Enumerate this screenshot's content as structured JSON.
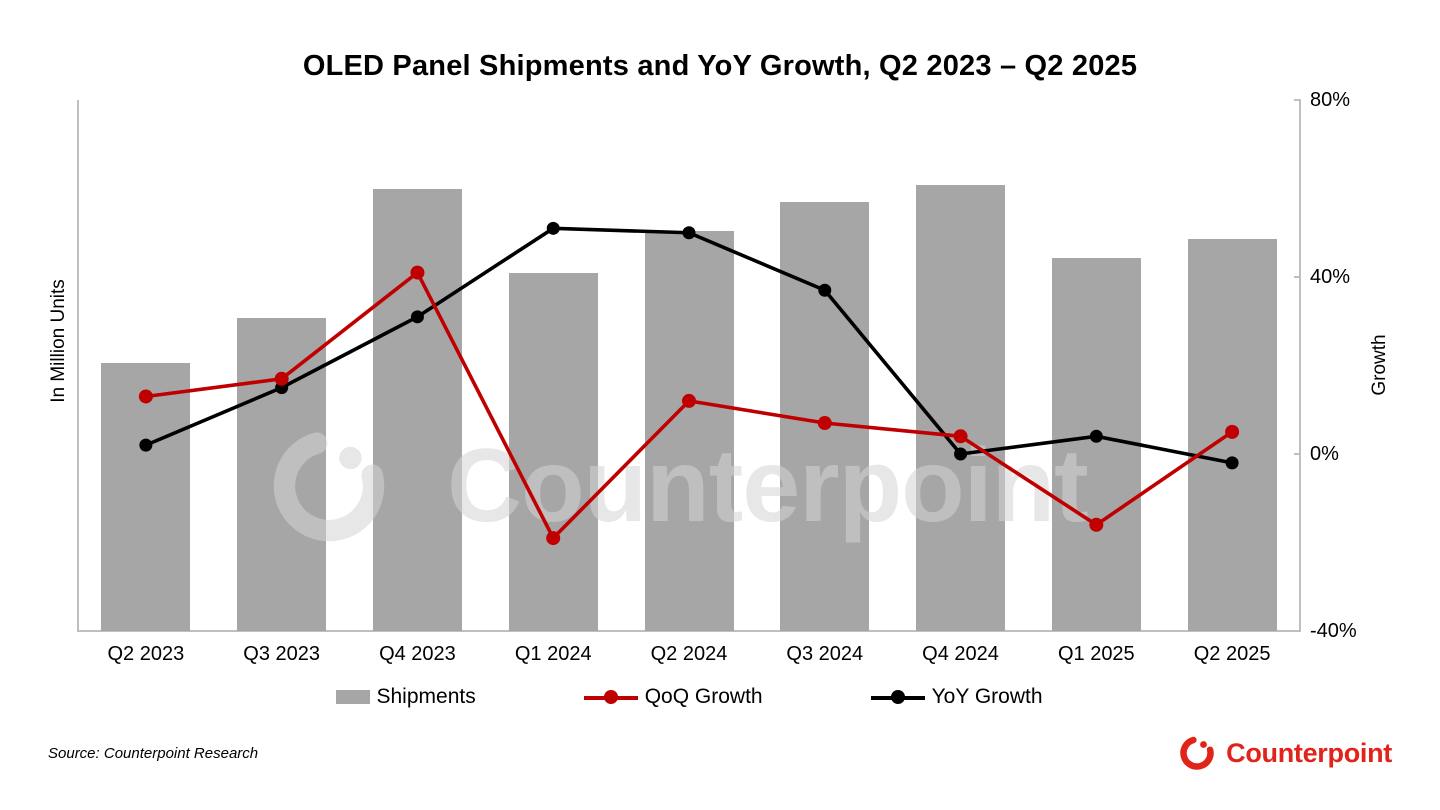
{
  "title": "OLED Panel Shipments and YoY Growth, Q2 2023 – Q2 2025",
  "source": "Source: Counterpoint Research",
  "brand": {
    "name": "Counterpoint",
    "icon": "counterpoint-ring-logo",
    "color": "#e2231a"
  },
  "watermark": {
    "text": "Counterpoint",
    "icon": "counterpoint-ring-logo"
  },
  "legend": [
    {
      "label": "Shipments",
      "type": "bar",
      "color": "#a6a6a6"
    },
    {
      "label": "QoQ Growth",
      "type": "line",
      "color": "#c00000"
    },
    {
      "label": "YoY Growth",
      "type": "line",
      "color": "#000000"
    }
  ],
  "chart_data": {
    "type": "bar+line combo",
    "title": "OLED Panel Shipments and YoY Growth, Q2 2023 – Q2 2025",
    "categories": [
      "Q2 2023",
      "Q3 2023",
      "Q4 2023",
      "Q1 2024",
      "Q2 2024",
      "Q3 2024",
      "Q4 2024",
      "Q1 2025",
      "Q2 2025"
    ],
    "series": [
      {
        "name": "Shipments",
        "type": "bar",
        "axis": "left",
        "note": "left axis has no numeric tick labels; heights given as fraction of plot height",
        "values_relative_height": [
          0.505,
          0.589,
          0.832,
          0.674,
          0.753,
          0.808,
          0.84,
          0.702,
          0.738
        ]
      },
      {
        "name": "QoQ Growth",
        "type": "line",
        "axis": "right",
        "unit": "%",
        "values": [
          13,
          17,
          41,
          -19,
          12,
          7,
          4,
          -16,
          5
        ]
      },
      {
        "name": "YoY Growth",
        "type": "line",
        "axis": "right",
        "unit": "%",
        "values": [
          2,
          15,
          31,
          51,
          50,
          37,
          0,
          4,
          -2
        ]
      }
    ],
    "left_axis": {
      "label": "In Million Units",
      "tick_labels": []
    },
    "right_axis": {
      "label": "Growth",
      "min": -40,
      "max": 80,
      "ticks": [
        {
          "label": "80%",
          "value": 80
        },
        {
          "label": "40%",
          "value": 40
        },
        {
          "label": "0%",
          "value": 0
        },
        {
          "label": "-40%",
          "value": -40
        }
      ]
    },
    "grid": false,
    "legend_position": "bottom",
    "colors": {
      "bar": "#a6a6a6",
      "qoq_line": "#c00000",
      "yoy_line": "#000000",
      "axis_line": "#bfbfbf"
    }
  }
}
